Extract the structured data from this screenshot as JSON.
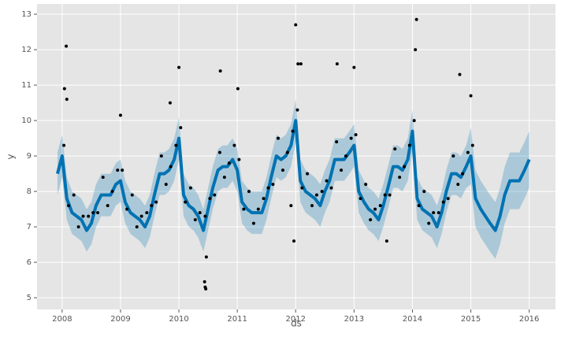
{
  "chart_data": {
    "type": "forecast",
    "xlabel": "ds",
    "ylabel": "y",
    "xlim": [
      2007.57,
      2016.45
    ],
    "ylim": [
      4.67,
      13.29
    ],
    "xticks": [
      2008,
      2009,
      2010,
      2011,
      2012,
      2013,
      2014,
      2015,
      2016
    ],
    "yticks": [
      5,
      6,
      7,
      8,
      9,
      10,
      11,
      12,
      13
    ],
    "grid": true,
    "line_color": "#0072B2",
    "band_color": "#0072B2",
    "point_color": "#000000",
    "x": [
      2007.92,
      2008.0,
      2008.08,
      2008.17,
      2008.25,
      2008.33,
      2008.42,
      2008.5,
      2008.58,
      2008.67,
      2008.75,
      2008.83,
      2008.92,
      2009.0,
      2009.08,
      2009.17,
      2009.25,
      2009.33,
      2009.42,
      2009.5,
      2009.58,
      2009.67,
      2009.75,
      2009.83,
      2009.92,
      2010.0,
      2010.08,
      2010.17,
      2010.25,
      2010.33,
      2010.42,
      2010.5,
      2010.58,
      2010.67,
      2010.75,
      2010.83,
      2010.92,
      2011.0,
      2011.08,
      2011.17,
      2011.25,
      2011.33,
      2011.42,
      2011.5,
      2011.58,
      2011.67,
      2011.75,
      2011.83,
      2011.92,
      2012.0,
      2012.08,
      2012.17,
      2012.25,
      2012.33,
      2012.42,
      2012.5,
      2012.58,
      2012.67,
      2012.75,
      2012.83,
      2012.92,
      2013.0,
      2013.08,
      2013.17,
      2013.25,
      2013.33,
      2013.42,
      2013.5,
      2013.58,
      2013.67,
      2013.75,
      2013.83,
      2013.92,
      2014.0,
      2014.08,
      2014.17,
      2014.25,
      2014.33,
      2014.42,
      2014.5,
      2014.58,
      2014.67,
      2014.75,
      2014.83,
      2014.92,
      2015.0,
      2015.08,
      2015.17,
      2015.25,
      2015.33,
      2015.42,
      2015.5,
      2015.58,
      2015.67,
      2015.75,
      2015.83,
      2015.92,
      2016.0
    ],
    "yhat": [
      8.5,
      9.0,
      7.8,
      7.4,
      7.3,
      7.2,
      6.9,
      7.1,
      7.6,
      7.9,
      7.9,
      7.9,
      8.2,
      8.3,
      7.7,
      7.4,
      7.3,
      7.2,
      7.0,
      7.3,
      7.9,
      8.5,
      8.5,
      8.6,
      8.9,
      9.5,
      7.9,
      7.6,
      7.5,
      7.3,
      6.9,
      7.5,
      8.1,
      8.6,
      8.7,
      8.7,
      8.9,
      8.6,
      7.7,
      7.5,
      7.4,
      7.4,
      7.4,
      7.8,
      8.4,
      9.0,
      8.9,
      9.0,
      9.3,
      10.0,
      8.3,
      8.0,
      7.9,
      7.8,
      7.6,
      8.0,
      8.3,
      8.9,
      8.9,
      8.9,
      9.1,
      9.3,
      8.0,
      7.7,
      7.5,
      7.4,
      7.2,
      7.6,
      8.1,
      8.7,
      8.7,
      8.6,
      8.9,
      9.7,
      7.8,
      7.5,
      7.4,
      7.3,
      7.0,
      7.4,
      8.0,
      8.5,
      8.5,
      8.4,
      8.7,
      9.0,
      7.8,
      7.5,
      7.3,
      7.1,
      6.9,
      7.3,
      7.9,
      8.3,
      8.3,
      8.3,
      8.6,
      8.9
    ],
    "yhat_lower": [
      7.9,
      8.4,
      7.2,
      6.8,
      6.7,
      6.6,
      6.3,
      6.5,
      7.0,
      7.3,
      7.3,
      7.3,
      7.6,
      7.7,
      7.1,
      6.8,
      6.7,
      6.6,
      6.4,
      6.7,
      7.3,
      7.9,
      7.9,
      8.0,
      8.3,
      8.9,
      7.3,
      7.0,
      6.9,
      6.7,
      6.3,
      6.9,
      7.5,
      8.0,
      8.1,
      8.1,
      8.3,
      8.0,
      7.1,
      6.9,
      6.8,
      6.8,
      6.8,
      7.2,
      7.8,
      8.4,
      8.3,
      8.4,
      8.7,
      9.4,
      7.7,
      7.4,
      7.3,
      7.2,
      7.0,
      7.4,
      7.7,
      8.3,
      8.3,
      8.3,
      8.5,
      8.7,
      7.4,
      7.1,
      6.9,
      6.8,
      6.6,
      7.0,
      7.5,
      8.1,
      8.1,
      8.0,
      8.3,
      9.1,
      7.2,
      6.9,
      6.8,
      6.7,
      6.4,
      6.8,
      7.4,
      7.9,
      7.9,
      7.8,
      8.1,
      8.2,
      7.0,
      6.7,
      6.5,
      6.3,
      6.1,
      6.5,
      7.1,
      7.5,
      7.5,
      7.5,
      7.8,
      8.1
    ],
    "yhat_upper": [
      9.1,
      9.6,
      8.4,
      8.0,
      7.9,
      7.8,
      7.5,
      7.7,
      8.2,
      8.5,
      8.5,
      8.5,
      8.8,
      8.9,
      8.3,
      8.0,
      7.9,
      7.8,
      7.6,
      7.9,
      8.5,
      9.1,
      9.1,
      9.2,
      9.5,
      10.1,
      8.5,
      8.2,
      8.1,
      7.9,
      7.5,
      8.1,
      8.7,
      9.2,
      9.3,
      9.3,
      9.5,
      9.2,
      8.3,
      8.1,
      8.0,
      8.0,
      8.0,
      8.4,
      9.0,
      9.6,
      9.5,
      9.6,
      9.9,
      10.6,
      8.9,
      8.6,
      8.5,
      8.4,
      8.2,
      8.6,
      8.9,
      9.5,
      9.5,
      9.5,
      9.7,
      9.9,
      8.6,
      8.3,
      8.1,
      8.0,
      7.8,
      8.2,
      8.7,
      9.3,
      9.3,
      9.2,
      9.5,
      10.3,
      8.4,
      8.1,
      8.0,
      7.9,
      7.6,
      8.0,
      8.6,
      9.1,
      9.1,
      9.0,
      9.3,
      9.8,
      8.6,
      8.3,
      8.1,
      7.9,
      7.7,
      8.1,
      8.7,
      9.1,
      9.1,
      9.1,
      9.4,
      9.7
    ],
    "observed": {
      "x": [
        2008.03,
        2008.11,
        2008.2,
        2008.28,
        2008.36,
        2008.45,
        2008.53,
        2008.61,
        2008.7,
        2008.78,
        2008.86,
        2008.95,
        2009.03,
        2009.11,
        2009.2,
        2009.28,
        2009.36,
        2009.45,
        2009.53,
        2009.61,
        2009.7,
        2009.78,
        2009.86,
        2009.95,
        2010.03,
        2010.11,
        2010.2,
        2010.28,
        2010.36,
        2010.45,
        2010.53,
        2010.61,
        2010.7,
        2010.78,
        2010.86,
        2010.95,
        2011.03,
        2011.11,
        2011.2,
        2011.28,
        2011.36,
        2011.45,
        2011.53,
        2011.61,
        2011.7,
        2011.78,
        2011.86,
        2011.95,
        2012.03,
        2012.11,
        2012.2,
        2012.28,
        2012.36,
        2012.45,
        2012.53,
        2012.61,
        2012.7,
        2012.78,
        2012.86,
        2012.95,
        2013.03,
        2013.11,
        2013.2,
        2013.28,
        2013.36,
        2013.45,
        2013.53,
        2013.61,
        2013.7,
        2013.78,
        2013.86,
        2013.95,
        2014.03,
        2014.11,
        2014.2,
        2014.28,
        2014.36,
        2014.45,
        2014.53,
        2014.61,
        2014.7,
        2014.78,
        2014.86,
        2014.95,
        2015.03,
        2008.07,
        2008.04,
        2008.08,
        2010.44,
        2010.45,
        2010.46,
        2010.47,
        2012.0,
        2014.07,
        2014.05,
        2011.97,
        2013.56,
        2011.92,
        2012.04,
        2012.09,
        2012.71,
        2013.0,
        2010.0,
        2010.71,
        2011.01,
        2014.81,
        2015.0,
        2009.0,
        2009.85
      ],
      "y": [
        9.3,
        7.6,
        7.9,
        7.0,
        7.3,
        7.3,
        7.4,
        7.4,
        8.4,
        7.6,
        8.0,
        8.6,
        8.6,
        7.5,
        7.9,
        7.0,
        7.3,
        7.4,
        7.6,
        7.7,
        9.0,
        8.2,
        8.7,
        9.3,
        9.8,
        7.7,
        8.1,
        7.2,
        7.4,
        7.3,
        7.8,
        7.9,
        9.1,
        8.4,
        8.8,
        9.3,
        8.9,
        7.5,
        8.0,
        7.1,
        7.5,
        7.8,
        8.1,
        8.2,
        9.5,
        8.6,
        9.1,
        9.7,
        10.3,
        8.1,
        8.5,
        7.6,
        7.9,
        8.0,
        8.3,
        8.1,
        9.4,
        8.6,
        9.0,
        9.5,
        9.6,
        7.8,
        8.2,
        7.2,
        7.5,
        7.6,
        7.9,
        7.9,
        9.2,
        8.4,
        8.7,
        9.3,
        10.0,
        7.6,
        8.0,
        7.1,
        7.4,
        7.4,
        7.7,
        7.8,
        9.0,
        8.2,
        8.5,
        9.1,
        9.3,
        12.1,
        10.9,
        10.6,
        5.45,
        5.3,
        5.25,
        6.15,
        12.7,
        12.85,
        12.0,
        6.6,
        6.6,
        7.6,
        11.6,
        11.6,
        11.6,
        11.5,
        11.5,
        11.4,
        10.9,
        11.3,
        10.7,
        10.15,
        10.5
      ]
    }
  }
}
